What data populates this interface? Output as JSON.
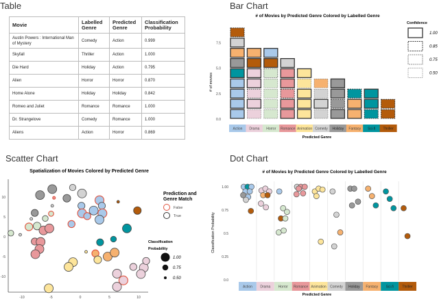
{
  "sections": {
    "table": "Table",
    "bar": "Bar Chart",
    "scatter": "Scatter Chart",
    "dot": "Dot Chart"
  },
  "genres": [
    "Action",
    "Drama",
    "Horror",
    "Romance",
    "Animation",
    "Comedy",
    "Holiday",
    "Fantasy",
    "Sci-fi",
    "Thriller"
  ],
  "genre_colors": {
    "Action": "#a9c9ea",
    "Drama": "#ecd1dc",
    "Horror": "#d6e8cf",
    "Romance": "#e8989b",
    "Animation": "#fde59b",
    "Comedy": "#d3d3d3",
    "Holiday": "#999999",
    "Fantasy": "#f6b16f",
    "Sci-fi": "#00959f",
    "Thriller": "#b35b0b"
  },
  "table": {
    "headers": [
      "Movie",
      "Labelled Genre",
      "Predicted Genre",
      "Classification Probability"
    ],
    "rows": [
      [
        "Austin Powers : International Man of Mystery",
        "Comedy",
        "Action",
        "0.999"
      ],
      [
        "Skyfall",
        "Thriller",
        "Action",
        "1.000"
      ],
      [
        "Die Hard",
        "Holiday",
        "Action",
        "0.795"
      ],
      [
        "Alien",
        "Horror",
        "Horror",
        "0.870"
      ],
      [
        "Home Alone",
        "Holiday",
        "Holiday",
        "0.842"
      ],
      [
        "Romeo and Juliet",
        "Romance",
        "Romance",
        "1.000"
      ],
      [
        "Dr. Strangelove",
        "Comedy",
        "Romance",
        "1.000"
      ],
      [
        "Aliens",
        "Action",
        "Horror",
        "0.869"
      ]
    ]
  },
  "chart_data": [
    {
      "type": "bar",
      "title": "# of  Movies by Predicted Genre Colored by Labelled Genre",
      "xlabel": "Predicted Genre",
      "ylabel": "# of movies",
      "yticks": [
        "0.0",
        "2.5",
        "5.0",
        "7.5"
      ],
      "ylim": [
        0,
        9
      ],
      "legend": {
        "title": "Confidence",
        "entries": [
          "1.00",
          "0.85",
          "0.75",
          "0.50"
        ],
        "placement": "right"
      },
      "stacks": [
        {
          "predicted": "Action",
          "blocks": [
            [
              "Action",
              1
            ],
            [
              "Action",
              1
            ],
            [
              "Action",
              1
            ],
            [
              "Action",
              1
            ],
            [
              "Sci-fi",
              1
            ],
            [
              "Holiday",
              1
            ],
            [
              "Fantasy",
              1
            ],
            [
              "Comedy",
              1
            ],
            [
              "Thriller",
              0.85
            ]
          ]
        },
        {
          "predicted": "Drama",
          "blocks": [
            [
              "Drama",
              0.5
            ],
            [
              "Drama",
              1
            ],
            [
              "Drama",
              0.75
            ],
            [
              "Drama",
              1
            ],
            [
              "Drama",
              1
            ],
            [
              "Thriller",
              1
            ],
            [
              "Fantasy",
              1
            ]
          ]
        },
        {
          "predicted": "Horror",
          "blocks": [
            [
              "Horror",
              0.5
            ],
            [
              "Horror",
              0.5
            ],
            [
              "Horror",
              0.5
            ],
            [
              "Horror",
              0.5
            ],
            [
              "Horror",
              0.75
            ],
            [
              "Thriller",
              1
            ],
            [
              "Action",
              1
            ]
          ]
        },
        {
          "predicted": "Romance",
          "blocks": [
            [
              "Romance",
              1
            ],
            [
              "Romance",
              1
            ],
            [
              "Romance",
              0.85
            ],
            [
              "Romance",
              1
            ],
            [
              "Romance",
              1
            ],
            [
              "Comedy",
              1
            ]
          ]
        },
        {
          "predicted": "Animation",
          "blocks": [
            [
              "Animation",
              1
            ],
            [
              "Animation",
              1
            ],
            [
              "Animation",
              1
            ],
            [
              "Animation",
              0.5
            ],
            [
              "Animation",
              1
            ]
          ]
        },
        {
          "predicted": "Comedy",
          "blocks": [
            [
              "Comedy",
              0.5
            ],
            [
              "Comedy",
              1
            ],
            [
              "Comedy",
              0.5
            ],
            [
              "Fantasy",
              0.5
            ]
          ]
        },
        {
          "predicted": "Holiday",
          "blocks": [
            [
              "Holiday",
              1
            ],
            [
              "Holiday",
              0.85
            ],
            [
              "Holiday",
              1
            ],
            [
              "Holiday",
              1
            ]
          ]
        },
        {
          "predicted": "Fantasy",
          "blocks": [
            [
              "Fantasy",
              1
            ],
            [
              "Fantasy",
              1
            ],
            [
              "Sci-fi",
              0.85
            ]
          ]
        },
        {
          "predicted": "Sci-fi",
          "blocks": [
            [
              "Sci-fi",
              0.85
            ],
            [
              "Sci-fi",
              1
            ],
            [
              "Sci-fi",
              1
            ]
          ]
        },
        {
          "predicted": "Thriller",
          "blocks": [
            [
              "Thriller",
              0.85
            ],
            [
              "Thriller",
              0.85
            ]
          ]
        }
      ]
    },
    {
      "type": "scatter",
      "title": "Spatialization of Movies Colored by Predicted Genre",
      "xticks": [
        "-10",
        "-5",
        "0",
        "5",
        "10"
      ],
      "yticks": [
        "10",
        "5",
        "0",
        "-5",
        "-10"
      ],
      "xlim": [
        -12.5,
        11.5
      ],
      "ylim": [
        -14,
        13.5
      ],
      "legend_match": {
        "title": "Prediction and Genre Match",
        "entries": [
          "False",
          "True"
        ],
        "colors": {
          "False": "#e0513c",
          "True": "#333333"
        }
      },
      "legend_size": {
        "title": "Classification Probability",
        "entries": [
          "1.00",
          "0.75",
          "0.50"
        ]
      },
      "points": [
        {
          "x": -4.8,
          "y": 12.0,
          "genre": "Holiday",
          "p": 1,
          "match": true
        },
        {
          "x": -6.9,
          "y": 10.5,
          "genre": "Holiday",
          "p": 1,
          "match": true
        },
        {
          "x": -1.3,
          "y": 12.4,
          "genre": "Comedy",
          "p": 0.8,
          "match": true
        },
        {
          "x": 0.3,
          "y": 10.9,
          "genre": "Comedy",
          "p": 1,
          "match": true
        },
        {
          "x": -2.3,
          "y": 9.7,
          "genre": "Holiday",
          "p": 0.9,
          "match": true
        },
        {
          "x": -4.5,
          "y": 9.8,
          "genre": "Romance",
          "p": 0.5,
          "match": false
        },
        {
          "x": -4.8,
          "y": 7.8,
          "genre": "Comedy",
          "p": 0.5,
          "match": true
        },
        {
          "x": -7.8,
          "y": 6.0,
          "genre": "Holiday",
          "p": 0.85,
          "match": true
        },
        {
          "x": -5.0,
          "y": 5.8,
          "genre": "Horror",
          "p": 0.7,
          "match": false
        },
        {
          "x": -8.4,
          "y": 4.5,
          "genre": "Comedy",
          "p": 0.5,
          "match": true
        },
        {
          "x": -6.0,
          "y": 4.6,
          "genre": "Horror",
          "p": 0.75,
          "match": true
        },
        {
          "x": -8.8,
          "y": 2.5,
          "genre": "Horror",
          "p": 0.9,
          "match": false
        },
        {
          "x": -7.4,
          "y": 2.7,
          "genre": "Horror",
          "p": 0.9,
          "match": true
        },
        {
          "x": -6.3,
          "y": 1.6,
          "genre": "Romance",
          "p": 1,
          "match": true
        },
        {
          "x": -5.3,
          "y": 2.1,
          "genre": "Romance",
          "p": 1,
          "match": true
        },
        {
          "x": -11.9,
          "y": 0.9,
          "genre": "Horror",
          "p": 0.75,
          "match": true
        },
        {
          "x": -10.3,
          "y": 0.5,
          "genre": "Comedy",
          "p": 0.5,
          "match": true
        },
        {
          "x": -7.8,
          "y": -1.2,
          "genre": "Romance",
          "p": 0.85,
          "match": true
        },
        {
          "x": -6.8,
          "y": -1.3,
          "genre": "Romance",
          "p": 1,
          "match": true
        },
        {
          "x": -7.0,
          "y": -3.1,
          "genre": "Romance",
          "p": 1,
          "match": true
        },
        {
          "x": -7.7,
          "y": -4.4,
          "genre": "Romance",
          "p": 1,
          "match": true
        },
        {
          "x": -1.5,
          "y": 3.2,
          "genre": "Action",
          "p": 0.85,
          "match": false
        },
        {
          "x": 0.2,
          "y": 7.8,
          "genre": "Action",
          "p": 0.85,
          "match": true
        },
        {
          "x": 0.3,
          "y": 5.9,
          "genre": "Action",
          "p": 1,
          "match": false
        },
        {
          "x": 1.2,
          "y": 5.2,
          "genre": "Action",
          "p": 0.85,
          "match": false
        },
        {
          "x": 2.3,
          "y": 6.6,
          "genre": "Action",
          "p": 1,
          "match": true
        },
        {
          "x": 3.3,
          "y": 9.2,
          "genre": "Action",
          "p": 1,
          "match": false
        },
        {
          "x": 3.7,
          "y": 7.8,
          "genre": "Action",
          "p": 0.85,
          "match": true
        },
        {
          "x": 3.8,
          "y": 5.9,
          "genre": "Action",
          "p": 1,
          "match": false
        },
        {
          "x": 3.3,
          "y": 4.3,
          "genre": "Action",
          "p": 1,
          "match": true
        },
        {
          "x": 6.5,
          "y": 8.8,
          "genre": "Thriller",
          "p": 0.5,
          "match": true
        },
        {
          "x": 9.8,
          "y": 6.6,
          "genre": "Thriller",
          "p": 0.9,
          "match": true
        },
        {
          "x": 8.0,
          "y": 2.1,
          "genre": "Sci-fi",
          "p": 1,
          "match": true
        },
        {
          "x": 3.4,
          "y": -1.4,
          "genre": "Sci-fi",
          "p": 0.85,
          "match": true
        },
        {
          "x": 5.7,
          "y": -0.6,
          "genre": "Sci-fi",
          "p": 0.75,
          "match": true
        },
        {
          "x": 1.0,
          "y": -3.8,
          "genre": "Animation",
          "p": 0.5,
          "match": true
        },
        {
          "x": 2.6,
          "y": -4.2,
          "genre": "Fantasy",
          "p": 0.85,
          "match": false
        },
        {
          "x": 3.0,
          "y": -5.8,
          "genre": "Animation",
          "p": 0.9,
          "match": true
        },
        {
          "x": 4.7,
          "y": -5.0,
          "genre": "Fantasy",
          "p": 1,
          "match": true
        },
        {
          "x": 5.9,
          "y": -4.0,
          "genre": "Fantasy",
          "p": 1,
          "match": true
        },
        {
          "x": -1.25,
          "y": -6.4,
          "genre": "Animation",
          "p": 1,
          "match": true
        },
        {
          "x": -2.0,
          "y": -7.6,
          "genre": "Animation",
          "p": 1,
          "match": true
        },
        {
          "x": -5.4,
          "y": -13.0,
          "genre": "Animation",
          "p": 1,
          "match": true
        },
        {
          "x": 6.3,
          "y": -9.3,
          "genre": "Drama",
          "p": 1,
          "match": true
        },
        {
          "x": 7.4,
          "y": -11.0,
          "genre": "Drama",
          "p": 1,
          "match": false
        },
        {
          "x": 6.3,
          "y": -12.6,
          "genre": "Drama",
          "p": 1,
          "match": true
        },
        {
          "x": 9.1,
          "y": -7.6,
          "genre": "Drama",
          "p": 0.85,
          "match": true
        },
        {
          "x": 10.9,
          "y": -7.8,
          "genre": "Drama",
          "p": 1,
          "match": true
        },
        {
          "x": 10.4,
          "y": -9.4,
          "genre": "Drama",
          "p": 1,
          "match": true
        },
        {
          "x": 11.3,
          "y": -6.1,
          "genre": "Drama",
          "p": 0.85,
          "match": true
        }
      ]
    },
    {
      "type": "scatter",
      "title": "# of  Movies by Predicted Genre Colored by Labelled Genre",
      "xlabel": "Predicted Genre",
      "ylabel": "Classification Probability",
      "yticks": [
        "0.0",
        "0.25",
        "0.5",
        "0.75",
        "1.00"
      ],
      "ylim": [
        0,
        1
      ],
      "columns": [
        {
          "predicted": "Action",
          "dots": [
            [
              "Action",
              1.0
            ],
            [
              "Sci-fi",
              1.0
            ],
            [
              "Action",
              1.0
            ],
            [
              "Action",
              0.95
            ],
            [
              "Action",
              0.95
            ],
            [
              "Holiday",
              0.91
            ],
            [
              "Action",
              0.89
            ],
            [
              "Comedy",
              0.86
            ],
            [
              "Thriller",
              0.74
            ]
          ]
        },
        {
          "predicted": "Drama",
          "dots": [
            [
              "Drama",
              0.96
            ],
            [
              "Drama",
              0.98
            ],
            [
              "Drama",
              0.95
            ],
            [
              "Fantasy",
              0.91
            ],
            [
              "Thriller",
              0.91
            ],
            [
              "Drama",
              0.82
            ],
            [
              "Drama",
              0.78
            ]
          ]
        },
        {
          "predicted": "Horror",
          "dots": [
            [
              "Action",
              0.95
            ],
            [
              "Horror",
              0.77
            ],
            [
              "Horror",
              0.73
            ],
            [
              "Thriller",
              0.66
            ],
            [
              "Horror",
              0.66
            ],
            [
              "Horror",
              0.51
            ],
            [
              "Horror",
              0.53
            ]
          ]
        },
        {
          "predicted": "Romance",
          "dots": [
            [
              "Comedy",
              1.0
            ],
            [
              "Romance",
              1.0
            ],
            [
              "Romance",
              1.0
            ],
            [
              "Romance",
              0.98
            ],
            [
              "Romance",
              0.93
            ],
            [
              "Romance",
              0.92
            ]
          ]
        },
        {
          "predicted": "Animation",
          "dots": [
            [
              "Animation",
              0.95
            ],
            [
              "Animation",
              0.98
            ],
            [
              "Animation",
              0.97
            ],
            [
              "Animation",
              0.9
            ],
            [
              "Animation",
              0.41
            ]
          ]
        },
        {
          "predicted": "Comedy",
          "dots": [
            [
              "Comedy",
              0.95
            ],
            [
              "Comedy",
              0.7
            ],
            [
              "Fantasy",
              0.51
            ],
            [
              "Comedy",
              0.36
            ]
          ]
        },
        {
          "predicted": "Holiday",
          "dots": [
            [
              "Holiday",
              0.98
            ],
            [
              "Holiday",
              0.98
            ],
            [
              "Holiday",
              0.84
            ],
            [
              "Holiday",
              0.8
            ]
          ]
        },
        {
          "predicted": "Fantasy",
          "dots": [
            [
              "Fantasy",
              0.98
            ],
            [
              "Fantasy",
              0.9
            ],
            [
              "Sci-fi",
              0.8
            ]
          ]
        },
        {
          "predicted": "Sci-fi",
          "dots": [
            [
              "Sci-fi",
              0.95
            ],
            [
              "Sci-fi",
              0.87
            ],
            [
              "Sci-fi",
              0.77
            ]
          ]
        },
        {
          "predicted": "Thriller",
          "dots": [
            [
              "Thriller",
              0.77
            ],
            [
              "Thriller",
              0.47
            ]
          ]
        }
      ]
    }
  ]
}
